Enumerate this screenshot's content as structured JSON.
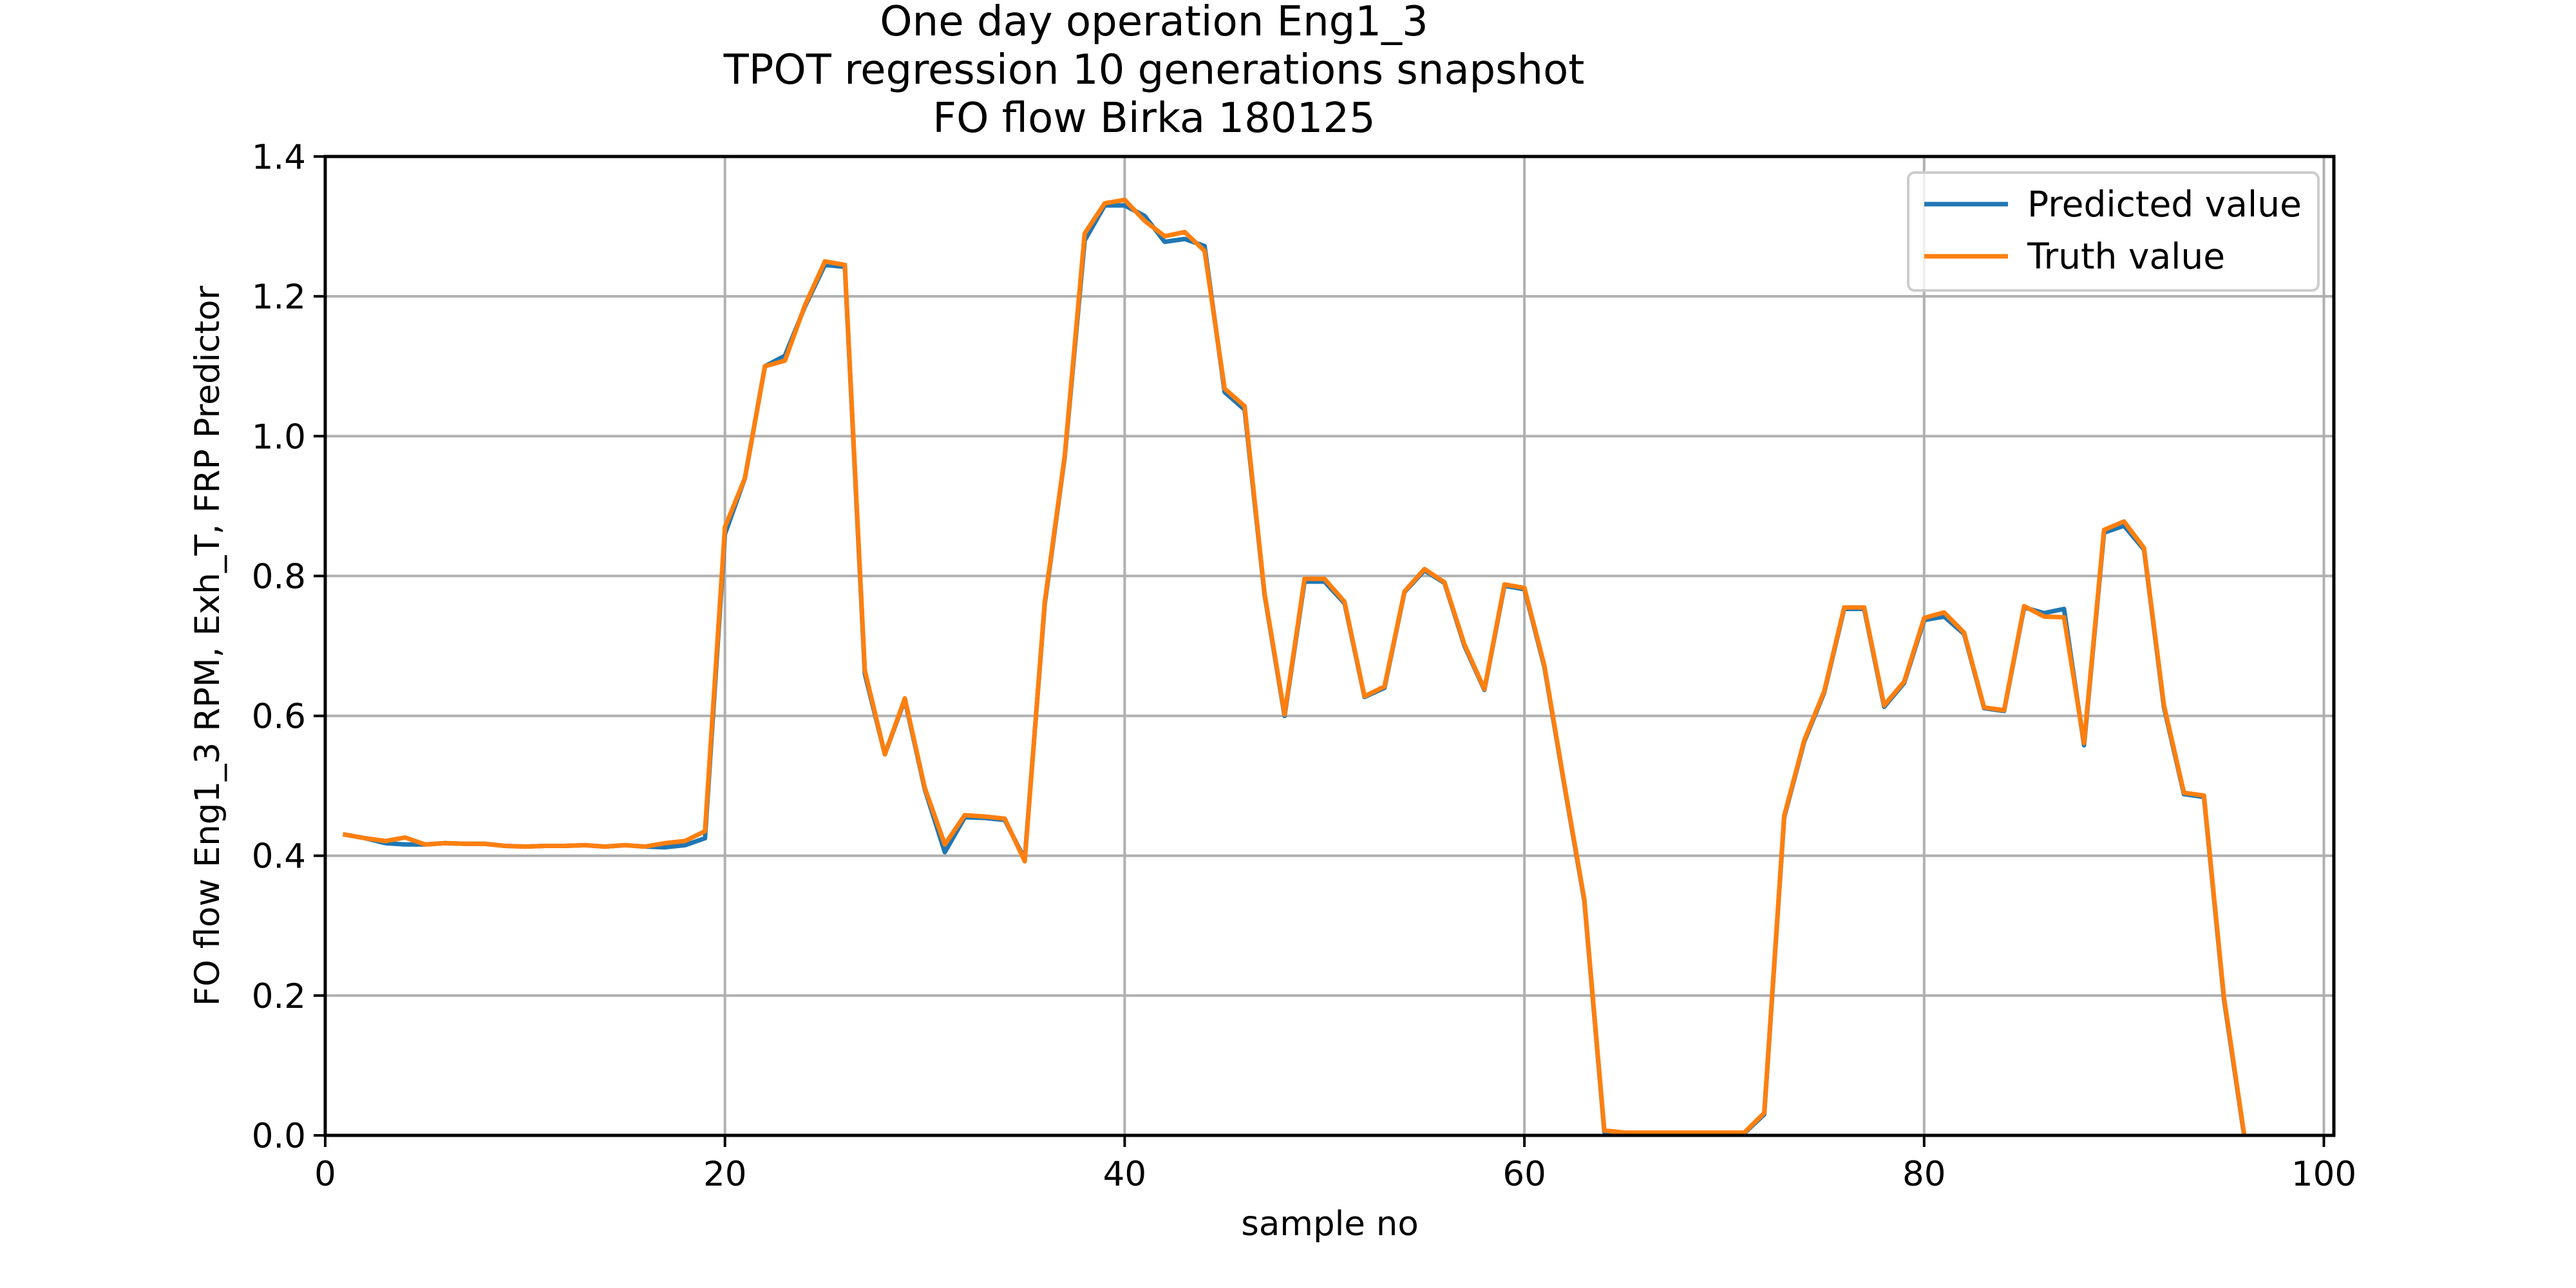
{
  "chart_data": {
    "type": "line",
    "title_lines": [
      "One day operation Eng1_3",
      "TPOT regression 10 generations snapshot",
      "FO flow Birka 180125"
    ],
    "xlabel": "sample no",
    "ylabel": "FO flow Eng1_3 RPM, Exh_T, FRP Predictor",
    "xlim": [
      0,
      100.5
    ],
    "ylim": [
      0,
      1.4
    ],
    "xticks": [
      0,
      20,
      40,
      60,
      80,
      100
    ],
    "xtick_labels": [
      "0",
      "20",
      "40",
      "60",
      "80",
      "100"
    ],
    "yticks": [
      0.0,
      0.2,
      0.4,
      0.6,
      0.8,
      1.0,
      1.2,
      1.4
    ],
    "ytick_labels": [
      "0.0",
      "0.2",
      "0.4",
      "0.6",
      "0.8",
      "1.0",
      "1.2",
      "1.4"
    ],
    "grid": true,
    "legend_position": "top-right",
    "x": [
      1,
      2,
      3,
      4,
      5,
      6,
      7,
      8,
      9,
      10,
      11,
      12,
      13,
      14,
      15,
      16,
      17,
      18,
      19,
      20,
      21,
      22,
      23,
      24,
      25,
      26,
      27,
      28,
      29,
      30,
      31,
      32,
      33,
      34,
      35,
      36,
      37,
      38,
      39,
      40,
      41,
      42,
      43,
      44,
      45,
      46,
      47,
      48,
      49,
      50,
      51,
      52,
      53,
      54,
      55,
      56,
      57,
      58,
      59,
      60,
      61,
      62,
      63,
      64,
      65,
      66,
      67,
      68,
      69,
      70,
      71,
      72,
      73,
      74,
      75,
      76,
      77,
      78,
      79,
      80,
      81,
      82,
      83,
      84,
      85,
      86,
      87,
      88,
      89,
      90,
      91,
      92,
      93,
      94,
      95,
      96
    ],
    "series": [
      {
        "name": "Predicted value",
        "color": "#1f77b4",
        "values": [
          0.43,
          0.425,
          0.418,
          0.416,
          0.416,
          0.418,
          0.417,
          0.417,
          0.414,
          0.413,
          0.414,
          0.414,
          0.415,
          0.413,
          0.415,
          0.413,
          0.412,
          0.415,
          0.425,
          0.86,
          0.94,
          1.1,
          1.115,
          1.185,
          1.245,
          1.242,
          0.66,
          0.545,
          0.623,
          0.495,
          0.405,
          0.455,
          0.454,
          0.451,
          0.395,
          0.76,
          0.97,
          1.28,
          1.33,
          1.33,
          1.315,
          1.278,
          1.282,
          1.272,
          1.063,
          1.038,
          0.773,
          0.6,
          0.792,
          0.792,
          0.761,
          0.627,
          0.64,
          0.777,
          0.808,
          0.79,
          0.7,
          0.637,
          0.786,
          0.781,
          0.67,
          0.5,
          0.335,
          0.005,
          0.003,
          0.003,
          0.003,
          0.003,
          0.003,
          0.003,
          0.003,
          0.03,
          0.455,
          0.563,
          0.633,
          0.753,
          0.753,
          0.613,
          0.647,
          0.737,
          0.742,
          0.717,
          0.611,
          0.607,
          0.755,
          0.747,
          0.753,
          0.558,
          0.862,
          0.872,
          0.838,
          0.612,
          0.488,
          0.484,
          0.195,
          0.002
        ]
      },
      {
        "name": "Truth value",
        "color": "#ff7f0e",
        "values": [
          0.43,
          0.425,
          0.421,
          0.426,
          0.416,
          0.418,
          0.417,
          0.417,
          0.414,
          0.413,
          0.414,
          0.414,
          0.415,
          0.413,
          0.415,
          0.413,
          0.418,
          0.421,
          0.435,
          0.87,
          0.94,
          1.1,
          1.108,
          1.187,
          1.25,
          1.245,
          0.665,
          0.545,
          0.625,
          0.497,
          0.416,
          0.458,
          0.456,
          0.453,
          0.392,
          0.763,
          0.972,
          1.29,
          1.333,
          1.338,
          1.308,
          1.286,
          1.292,
          1.265,
          1.068,
          1.043,
          0.775,
          0.602,
          0.796,
          0.796,
          0.763,
          0.628,
          0.642,
          0.778,
          0.81,
          0.791,
          0.702,
          0.638,
          0.788,
          0.783,
          0.672,
          0.502,
          0.337,
          0.007,
          0.004,
          0.004,
          0.004,
          0.004,
          0.004,
          0.004,
          0.004,
          0.032,
          0.457,
          0.565,
          0.635,
          0.755,
          0.755,
          0.615,
          0.649,
          0.74,
          0.748,
          0.719,
          0.612,
          0.608,
          0.757,
          0.742,
          0.741,
          0.561,
          0.866,
          0.878,
          0.84,
          0.615,
          0.49,
          0.486,
          0.198,
          0.004
        ]
      }
    ]
  }
}
